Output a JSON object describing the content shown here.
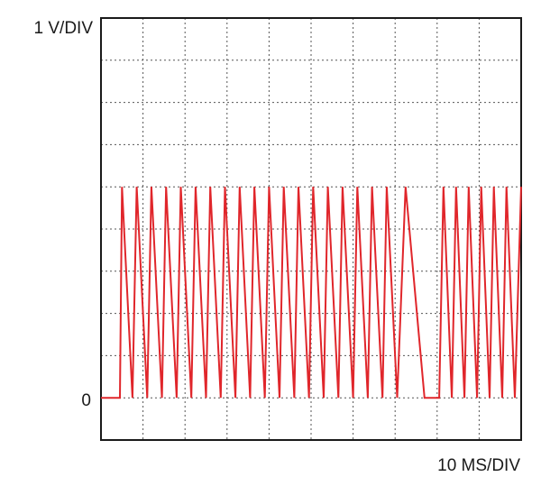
{
  "chart_data": {
    "type": "line",
    "ylabel": "1 V/DIV",
    "xlabel": "10 MS/DIV",
    "zero_label": "0",
    "grid": true,
    "divisions": {
      "x": 10,
      "y": 10
    },
    "ylim": [
      -1,
      9
    ],
    "xlim": [
      0,
      100
    ],
    "line_color": "#e0262b",
    "grid_color": "#555555",
    "frame_color": "#1a1a1a",
    "series": [
      {
        "x": [
          0,
          4.5,
          5.0,
          7.5,
          8.5,
          11.0,
          12.0,
          14.5,
          15.5,
          18.0,
          19.0,
          21.5,
          22.5,
          25.0,
          26.0,
          28.5,
          29.5,
          32.0,
          33.0,
          35.5,
          36.5,
          39.0,
          40.0,
          42.5,
          43.5,
          46.0,
          47.0,
          49.5,
          50.5,
          53.0,
          54.0,
          56.5,
          57.5,
          60.0,
          61.0,
          63.5,
          64.5,
          67.0,
          68.0,
          70.5,
          72.5,
          77.0,
          79.0,
          80.5,
          81.5,
          83.5,
          84.5,
          86.5,
          87.5,
          89.5,
          90.5,
          92.5,
          93.5,
          95.5,
          96.5,
          98.5,
          100
        ],
        "y": [
          0,
          0,
          5,
          0,
          5,
          0,
          5,
          0,
          5,
          0,
          5,
          0,
          5,
          0,
          5,
          0,
          5,
          0,
          5,
          0,
          5,
          0,
          5,
          0,
          5,
          0,
          5,
          0,
          5,
          0,
          5,
          0,
          5,
          0,
          5,
          0,
          5,
          0,
          5,
          0,
          5,
          0,
          0,
          0,
          5,
          0,
          5,
          0,
          5,
          0,
          5,
          0,
          5,
          0,
          5,
          0,
          5
        ]
      }
    ]
  }
}
